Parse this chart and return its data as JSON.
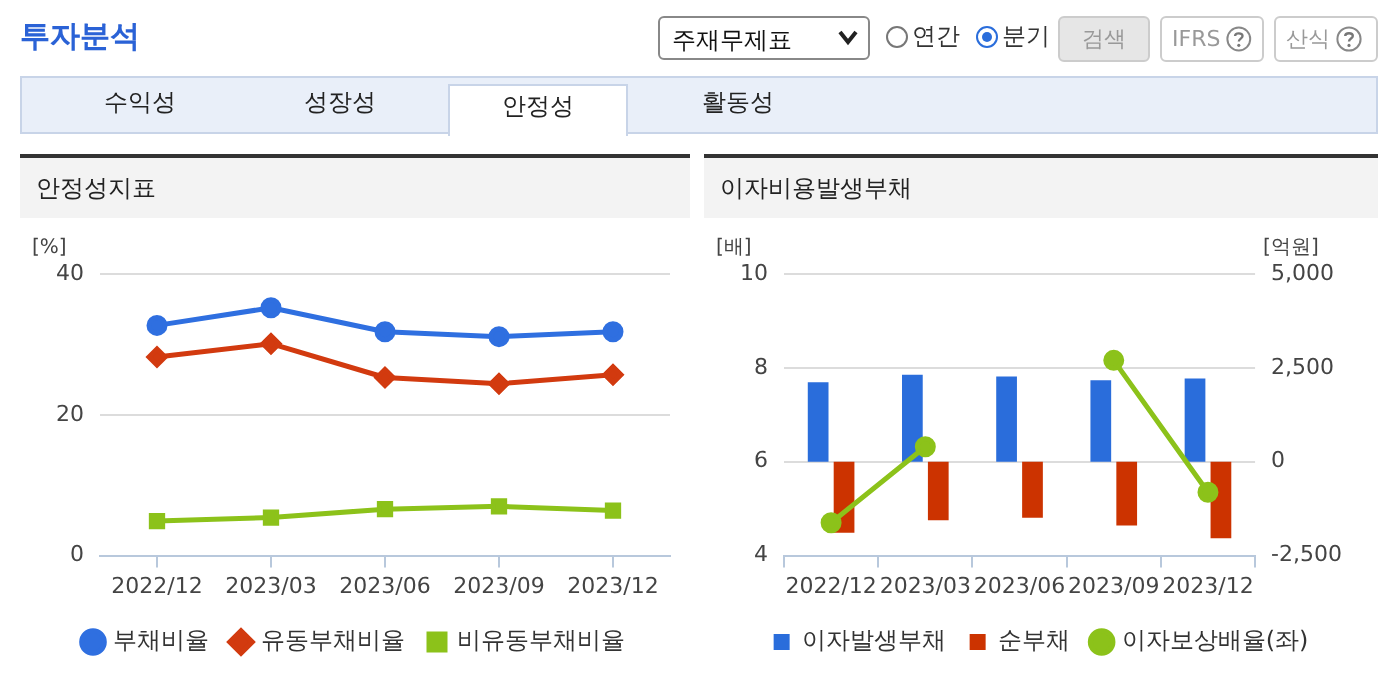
{
  "chart_data": [
    {
      "type": "other",
      "title": "투자분석",
      "annotations": [
        "주재무제표",
        "연간",
        "분기",
        "검색",
        "IFRS",
        "산식",
        "수익성",
        "성장성",
        "안정성",
        "활동성"
      ]
    },
    {
      "type": "line",
      "title": "안정성지표",
      "ylabel": "[%]",
      "categories": [
        "2022/12",
        "2023/03",
        "2023/06",
        "2023/09",
        "2023/12"
      ],
      "series": [
        {
          "name": "부채비율",
          "color": "#2f6fe0",
          "marker": "circle",
          "values": [
            32.7,
            35.2,
            31.8,
            31.1,
            31.8
          ]
        },
        {
          "name": "유동부채비율",
          "color": "#d23a0f",
          "marker": "diamond",
          "values": [
            28.2,
            30.1,
            25.3,
            24.4,
            25.7
          ]
        },
        {
          "name": "비유동부채비율",
          "color": "#8cc21a",
          "marker": "square",
          "values": [
            4.9,
            5.4,
            6.6,
            7.0,
            6.4
          ]
        }
      ],
      "ylim": [
        0,
        40
      ],
      "yticks": [
        0,
        20,
        40
      ],
      "grid": "y",
      "legend": "bottom"
    },
    {
      "type": "bar",
      "title": "이자비용발생부채",
      "ylabel": "[배]",
      "y2label": "[억원]",
      "categories": [
        "2022/12",
        "2023/03",
        "2023/06",
        "2023/09",
        "2023/12"
      ],
      "series": [
        {
          "name": "이자발생부채",
          "color": "#2a6ddb",
          "axis": "y2",
          "values": [
            2120,
            2320,
            2270,
            2170,
            2220
          ]
        },
        {
          "name": "순부채",
          "color": "#cc3300",
          "axis": "y2",
          "values": [
            -1890,
            -1560,
            -1490,
            -1700,
            -2040
          ]
        },
        {
          "name": "이자보상배율(좌)",
          "type": "line",
          "color": "#8cc21a",
          "marker": "circle",
          "values": [
            4.7,
            6.32,
            null,
            8.16,
            5.35
          ]
        }
      ],
      "ylim": [
        4,
        10
      ],
      "yticks": [
        4,
        6,
        8,
        10
      ],
      "y2lim": [
        -2500,
        5000
      ],
      "y2ticks": [
        {
          "value": -2500,
          "label": "-2,500"
        },
        {
          "value": 0,
          "label": "0"
        },
        {
          "value": 2500,
          "label": "2,500"
        },
        {
          "value": 5000,
          "label": "5,000"
        }
      ],
      "grid": "y",
      "legend": "bottom"
    }
  ]
}
